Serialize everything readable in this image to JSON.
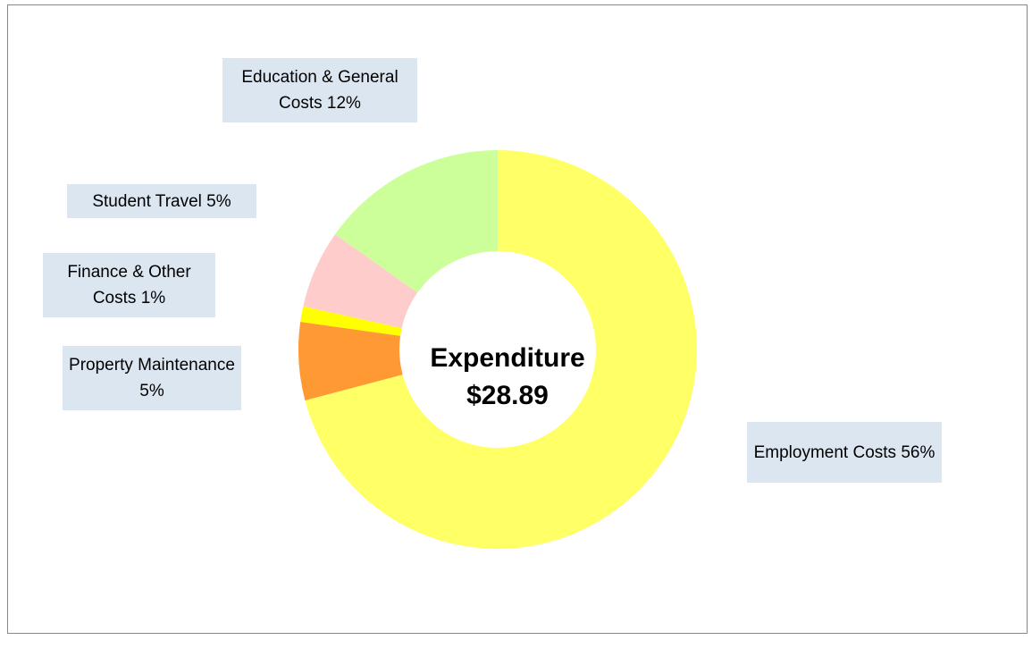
{
  "chart_data": {
    "type": "donut",
    "center_label": [
      "Expenditure",
      "$28.89"
    ],
    "categories": [
      "Employment Costs",
      "Property Maintenance",
      "Finance & Other Costs",
      "Student Travel",
      "Education & General Costs"
    ],
    "values": [
      56,
      5,
      1,
      5,
      12
    ],
    "value_labels": [
      "56%",
      "5%",
      "1%",
      "5%",
      "12%"
    ],
    "colors": [
      "#FFFF66",
      "#FF9933",
      "#FFFF00",
      "#FFCCCC",
      "#CCFF99"
    ]
  }
}
